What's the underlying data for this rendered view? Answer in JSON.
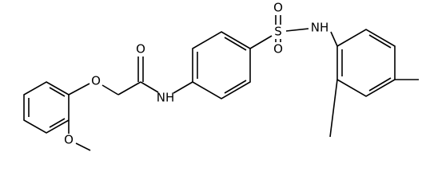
{
  "atoms": [
    {
      "label": "O"
    },
    {
      "label": "O"
    },
    {
      "label": "O"
    },
    {
      "label": "NH"
    },
    {
      "label": "S"
    },
    {
      "label": "O"
    },
    {
      "label": "O"
    },
    {
      "label": "NH"
    }
  ]
}
